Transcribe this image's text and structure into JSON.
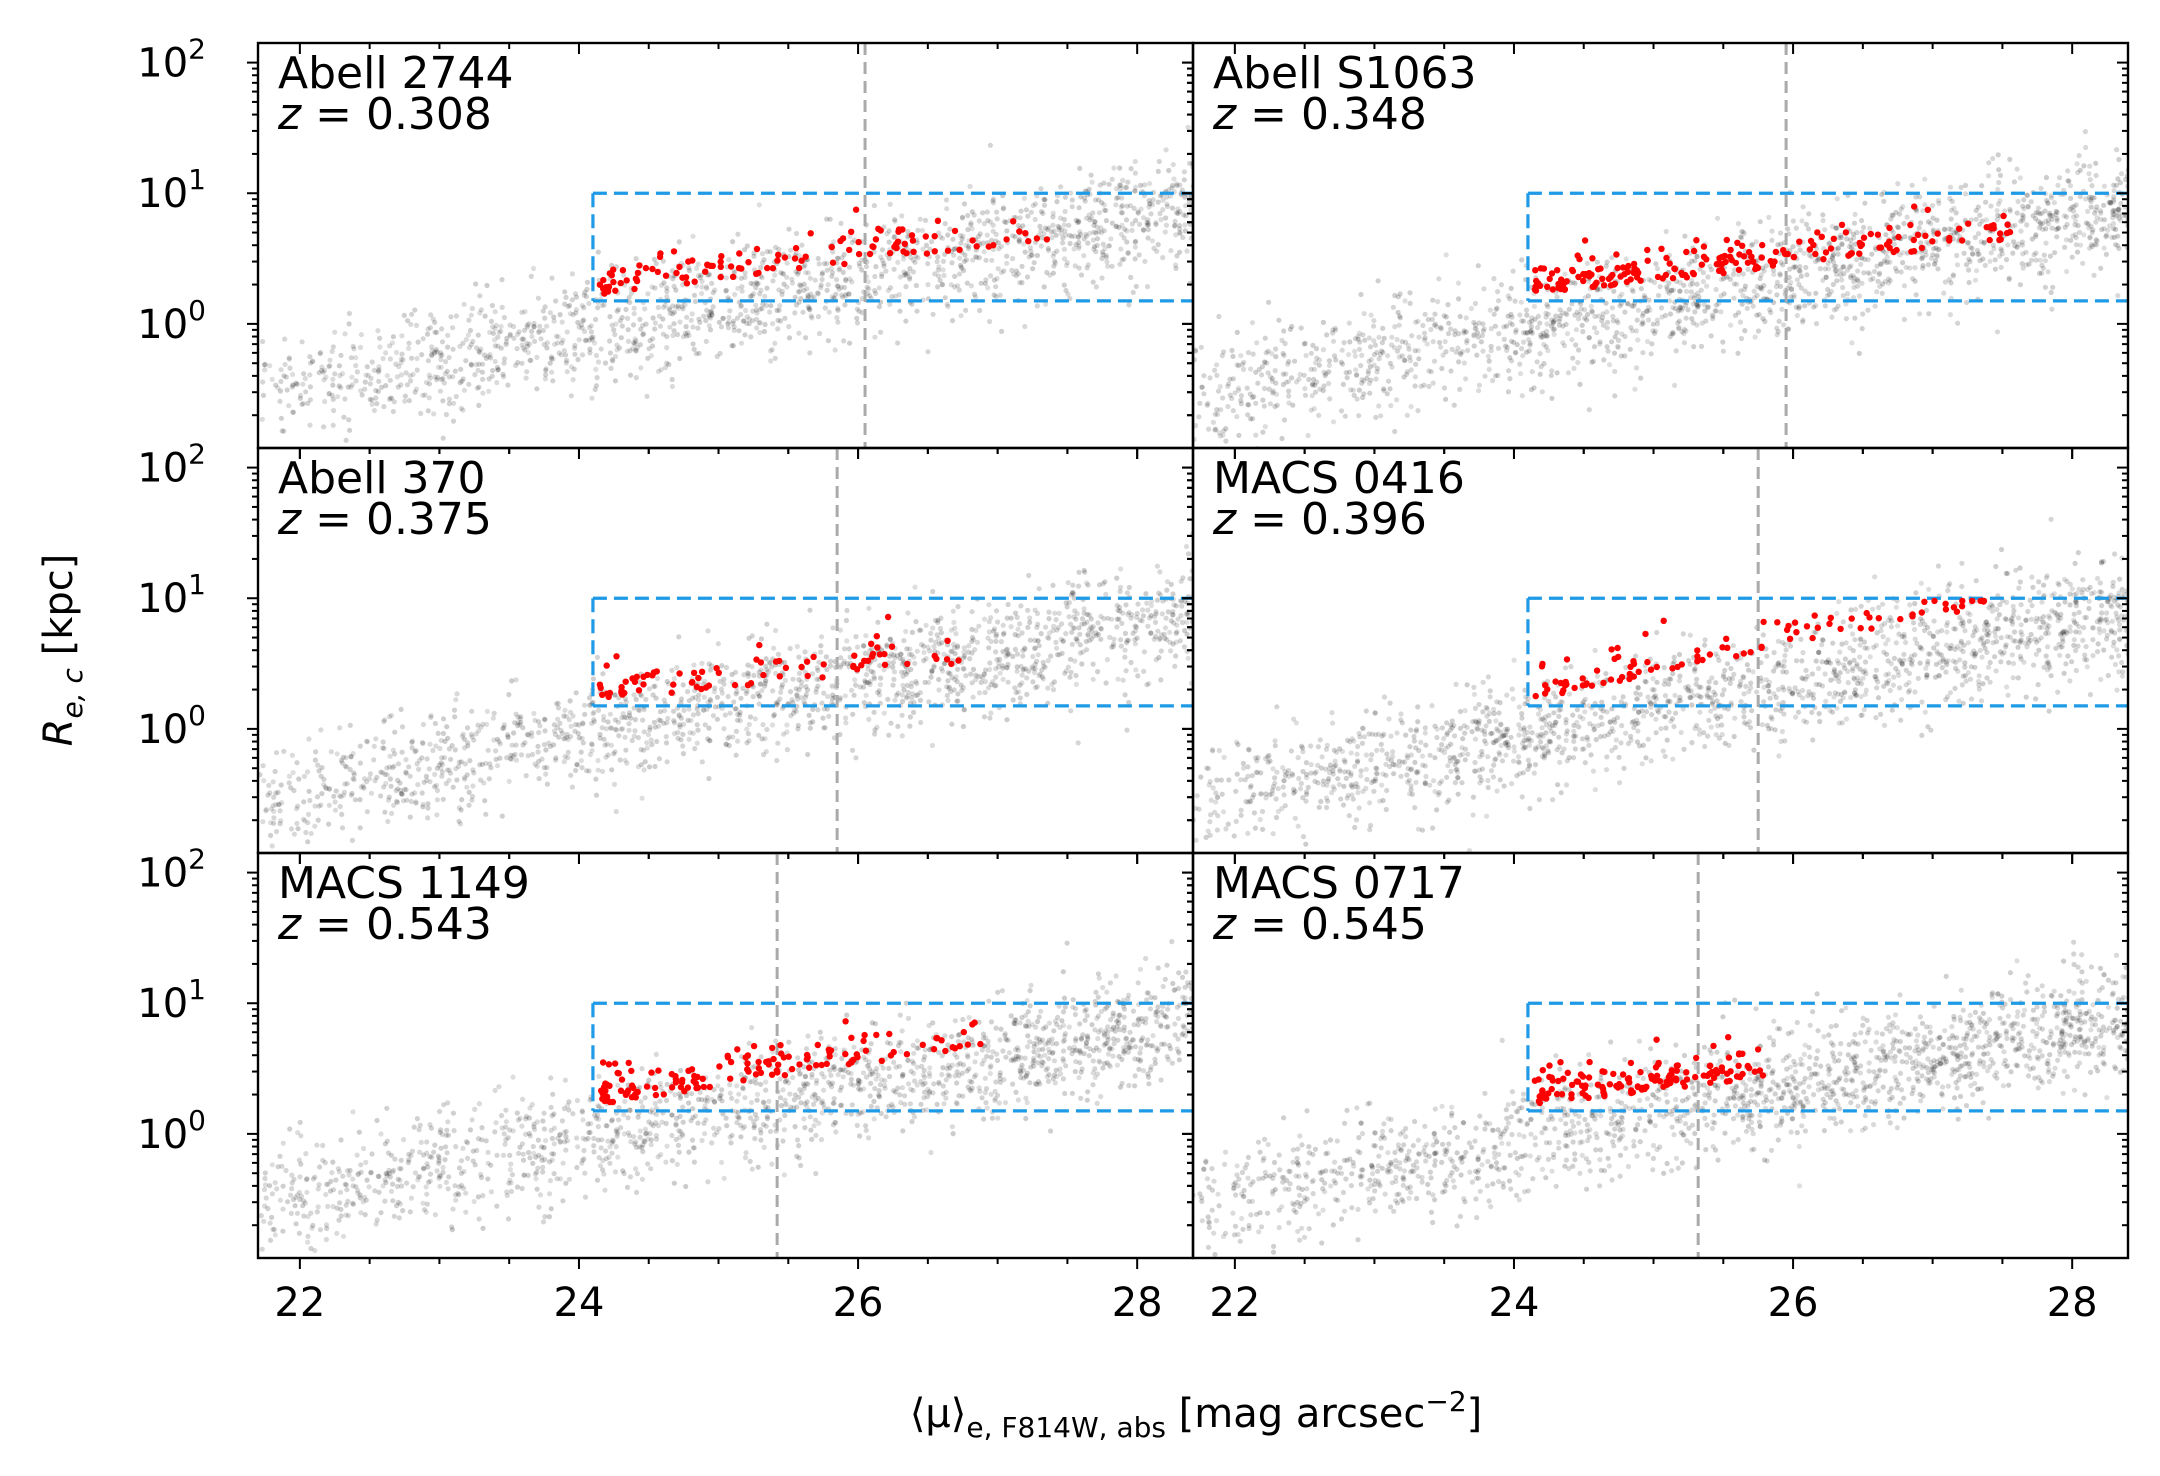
{
  "chart_data": {
    "type": "scatter",
    "figure_xlabel": "⟨μ⟩",
    "figure_xlabel_sub": "e, F814W, abs",
    "figure_xlabel_unit": " [mag arcsec",
    "figure_xlabel_exp": "−2",
    "figure_xlabel_close": "]",
    "figure_ylabel": "R",
    "figure_ylabel_sub": "e, c",
    "figure_ylabel_unit": " [kpc]",
    "xlim": [
      21.7,
      28.4
    ],
    "ylim_log10": [
      -0.95,
      2.15
    ],
    "x_ticks": [
      22,
      24,
      26,
      28
    ],
    "x_tick_labels": [
      "22",
      "24",
      "26",
      "28"
    ],
    "y_ticks_log10": [
      0,
      1,
      2
    ],
    "y_tick_base": "10",
    "y_tick_exps": [
      "0",
      "1",
      "2"
    ],
    "selection_box": {
      "x_min": 24.1,
      "x_max": 28.4,
      "y_min": 1.5,
      "y_max": 10.0,
      "color": "#1f9ae6"
    },
    "colors": {
      "background_points": "#000000",
      "selected_points": "#ff0000",
      "cut_line": "#aaaaaa"
    },
    "panels": [
      {
        "name": "Abell 2744",
        "z_label": "z",
        "z_value": " = 0.308",
        "cut_x": 26.05,
        "n_bg": 1600,
        "n_sel": 115,
        "sel_slope": 0.13,
        "sel_xmax": 27.4,
        "seed": 11
      },
      {
        "name": "Abell S1063",
        "z_label": "z",
        "z_value": " = 0.348",
        "cut_x": 25.95,
        "n_bg": 1700,
        "n_sel": 200,
        "sel_slope": 0.12,
        "sel_xmax": 27.6,
        "seed": 23
      },
      {
        "name": "Abell 370",
        "z_label": "z",
        "z_value": " = 0.375",
        "cut_x": 25.85,
        "n_bg": 1600,
        "n_sel": 80,
        "sel_slope": 0.1,
        "sel_xmax": 26.9,
        "seed": 37
      },
      {
        "name": "MACS 0416",
        "z_label": "z",
        "z_value": " = 0.396",
        "cut_x": 25.75,
        "n_bg": 1700,
        "n_sel": 95,
        "sel_slope": 0.22,
        "sel_xmax": 27.4,
        "seed": 41
      },
      {
        "name": "MACS 1149",
        "z_label": "z",
        "z_value": " = 0.543",
        "cut_x": 25.42,
        "n_bg": 1600,
        "n_sel": 140,
        "sel_slope": 0.16,
        "sel_xmax": 26.9,
        "seed": 53
      },
      {
        "name": "MACS 0717",
        "z_label": "z",
        "z_value": " = 0.545",
        "cut_x": 25.32,
        "n_bg": 1700,
        "n_sel": 130,
        "sel_slope": 0.12,
        "sel_xmax": 25.8,
        "seed": 67
      }
    ]
  }
}
